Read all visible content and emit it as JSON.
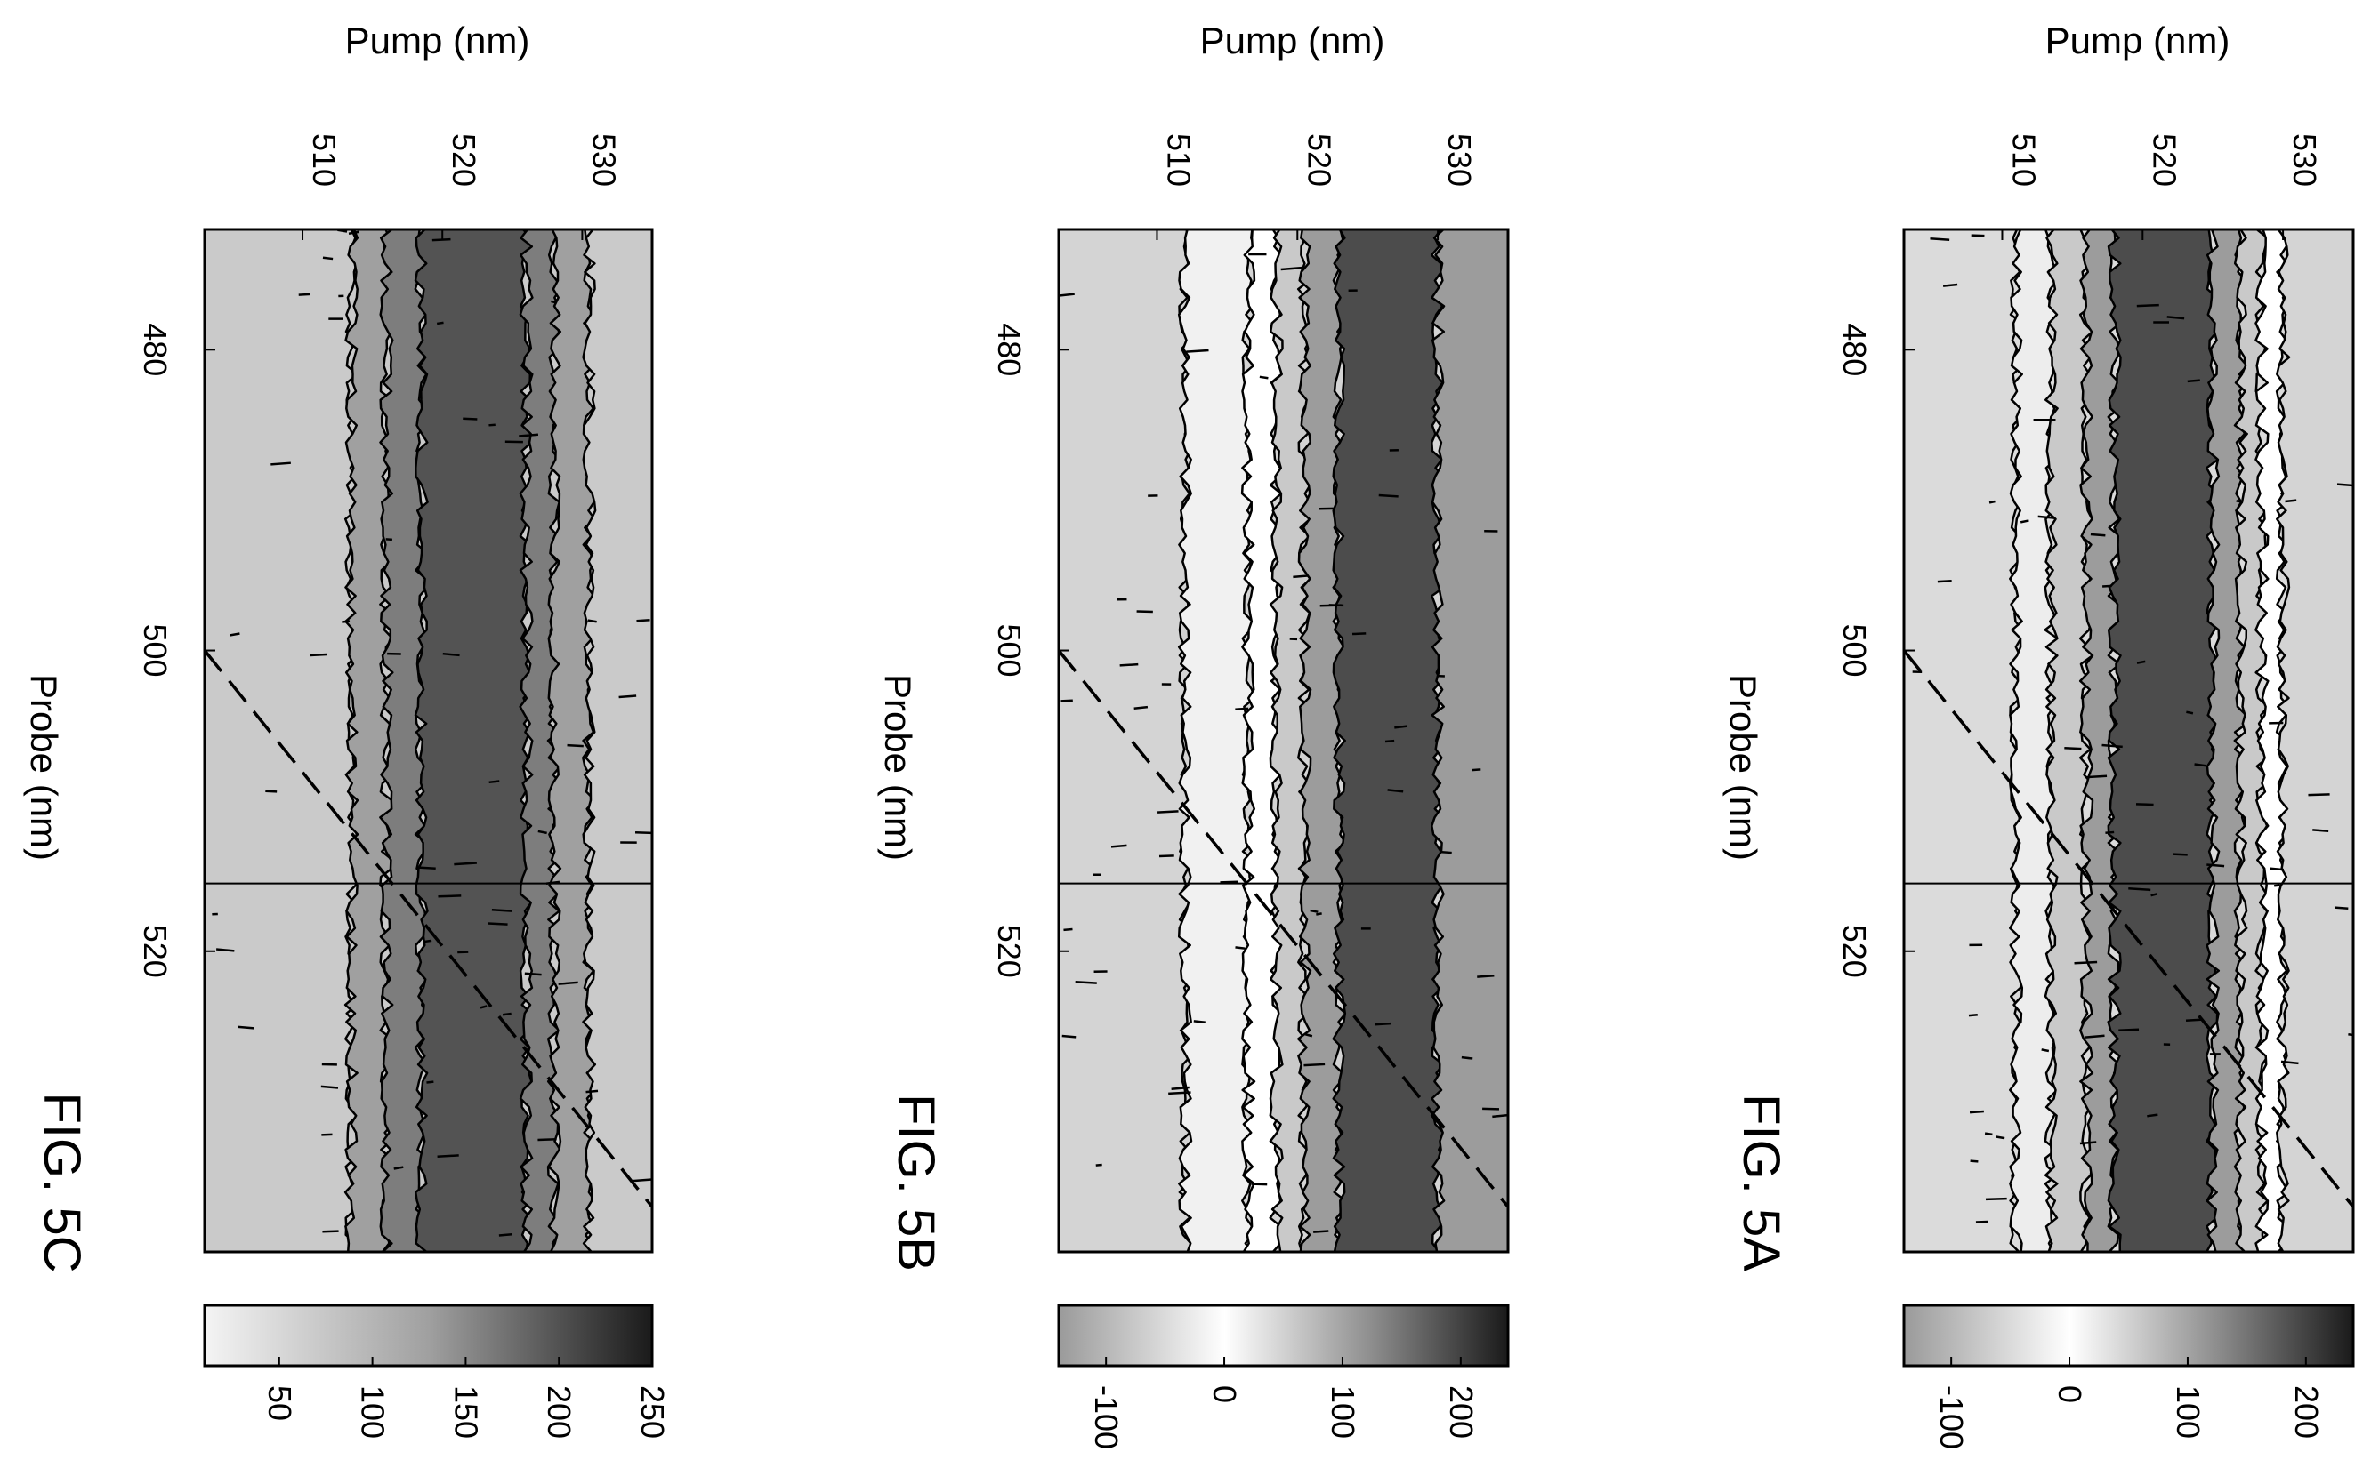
{
  "chart_data": [
    {
      "figure_label": "FIG. 5A",
      "type": "heatmap",
      "xlabel": "Probe (nm)",
      "ylabel": "Pump (nm)",
      "x_ticks": [
        "480",
        "500",
        "520"
      ],
      "y_ticks": [
        "510",
        "520",
        "530"
      ],
      "xlim": [
        472,
        540
      ],
      "ylim": [
        503,
        535
      ],
      "colorbar_ticks": [
        "-100",
        "0",
        "100",
        "200"
      ],
      "colorbar_range": [
        -140,
        240
      ],
      "colorbar_style": "diverging-white-center",
      "diagonal_line": {
        "from": [
          500,
          503
        ],
        "to": [
          537,
          535
        ],
        "style": "dashed"
      },
      "bands": [
        {
          "pump": [
            503,
            511
          ],
          "value": -50
        },
        {
          "pump": [
            511,
            513.5
          ],
          "value": 20
        },
        {
          "pump": [
            513.5,
            516
          ],
          "value": 60
        },
        {
          "pump": [
            516,
            518
          ],
          "value": 110
        },
        {
          "pump": [
            518,
            525
          ],
          "value": 200
        },
        {
          "pump": [
            525,
            527
          ],
          "value": 110
        },
        {
          "pump": [
            527,
            528.5
          ],
          "value": 60
        },
        {
          "pump": [
            528.5,
            530
          ],
          "value": 0
        },
        {
          "pump": [
            530,
            535
          ],
          "value": -60
        }
      ]
    },
    {
      "figure_label": "FIG. 5B",
      "type": "heatmap",
      "xlabel": "Probe (nm)",
      "ylabel": "Pump (nm)",
      "x_ticks": [
        "480",
        "500",
        "520"
      ],
      "y_ticks": [
        "510",
        "520",
        "530"
      ],
      "xlim": [
        472,
        540
      ],
      "ylim": [
        503,
        535
      ],
      "colorbar_ticks": [
        "-100",
        "0",
        "100",
        "200"
      ],
      "colorbar_range": [
        -140,
        240
      ],
      "colorbar_style": "diverging-white-center",
      "diagonal_line": {
        "from": [
          500,
          503
        ],
        "to": [
          537,
          535
        ],
        "style": "dashed"
      },
      "bands": [
        {
          "pump": [
            503,
            512
          ],
          "value": -60
        },
        {
          "pump": [
            512,
            516.5
          ],
          "value": -20
        },
        {
          "pump": [
            516.5,
            518.5
          ],
          "value": 0
        },
        {
          "pump": [
            518.5,
            520.5
          ],
          "value": 60
        },
        {
          "pump": [
            520.5,
            523
          ],
          "value": 110
        },
        {
          "pump": [
            523,
            530
          ],
          "value": 200
        },
        {
          "pump": [
            530,
            535
          ],
          "value": 110
        }
      ]
    },
    {
      "figure_label": "FIG. 5C",
      "type": "heatmap",
      "xlabel": "Probe (nm)",
      "ylabel": "Pump (nm)",
      "x_ticks": [
        "480",
        "500",
        "520"
      ],
      "y_ticks": [
        "510",
        "520",
        "530"
      ],
      "xlim": [
        472,
        540
      ],
      "ylim": [
        503,
        535
      ],
      "colorbar_ticks": [
        "50",
        "100",
        "150",
        "200",
        "250"
      ],
      "colorbar_range": [
        10,
        250
      ],
      "colorbar_style": "sequential",
      "diagonal_line": {
        "from": [
          500,
          503
        ],
        "to": [
          537,
          535
        ],
        "style": "dashed"
      },
      "bands": [
        {
          "pump": [
            503,
            513.5
          ],
          "value": 60
        },
        {
          "pump": [
            513.5,
            516
          ],
          "value": 110
        },
        {
          "pump": [
            516,
            518.5
          ],
          "value": 150
        },
        {
          "pump": [
            518.5,
            526
          ],
          "value": 200
        },
        {
          "pump": [
            526,
            528
          ],
          "value": 150
        },
        {
          "pump": [
            528,
            530.5
          ],
          "value": 110
        },
        {
          "pump": [
            530.5,
            535
          ],
          "value": 60
        }
      ]
    }
  ]
}
